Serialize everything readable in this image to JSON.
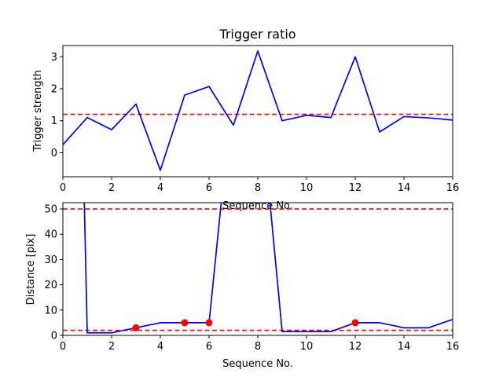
{
  "chart_data": [
    {
      "type": "line",
      "title": "Trigger ratio",
      "xlabel": "Sequence No.",
      "ylabel": "Trigger strength",
      "xlim": [
        0,
        16
      ],
      "ylim": [
        -0.75,
        3.35
      ],
      "xticks": [
        0,
        2,
        4,
        6,
        8,
        10,
        12,
        14,
        16
      ],
      "yticks": [
        0,
        1,
        2,
        3
      ],
      "grid": false,
      "series": [
        {
          "color": "#0000ff",
          "x": [
            0,
            1,
            2,
            3,
            4,
            5,
            6,
            7,
            8,
            9,
            10,
            11,
            12,
            13,
            14,
            15,
            16
          ],
          "y": [
            0.25,
            1.1,
            0.72,
            1.52,
            -0.55,
            1.8,
            2.07,
            0.86,
            3.18,
            1.0,
            1.17,
            1.1,
            3.0,
            0.65,
            1.13,
            1.09,
            1.02
          ]
        }
      ],
      "threshold": {
        "value": 1.2,
        "color": "#ff0000",
        "style": "dashed"
      }
    },
    {
      "type": "line",
      "title": "",
      "xlabel": "Sequence No.",
      "ylabel": "Distance [pix]",
      "xlim": [
        0,
        16
      ],
      "ylim": [
        0,
        52.5
      ],
      "xticks": [
        0,
        2,
        4,
        6,
        8,
        10,
        12,
        14,
        16
      ],
      "yticks": [
        0,
        10,
        20,
        30,
        40,
        50
      ],
      "grid": false,
      "series": [
        {
          "color": "#0000ff",
          "x": [
            0.88,
            1,
            2,
            3,
            4,
            5,
            6,
            6.5,
            8.5,
            9,
            10,
            11,
            12,
            13,
            14,
            15,
            16
          ],
          "y": [
            52.5,
            1,
            1,
            3,
            5,
            5,
            5,
            52.5,
            52.5,
            1.5,
            1.5,
            1.5,
            5,
            5,
            3,
            3,
            6.3
          ]
        }
      ],
      "markers": {
        "color": "#ff0000",
        "x": [
          3,
          5,
          6,
          12
        ],
        "y": [
          3,
          5,
          5,
          5
        ]
      },
      "thresholds": [
        {
          "value": 50,
          "color": "#ff0000",
          "style": "dashed"
        },
        {
          "value": 2,
          "color": "#ff0000",
          "style": "dashed"
        }
      ]
    }
  ]
}
